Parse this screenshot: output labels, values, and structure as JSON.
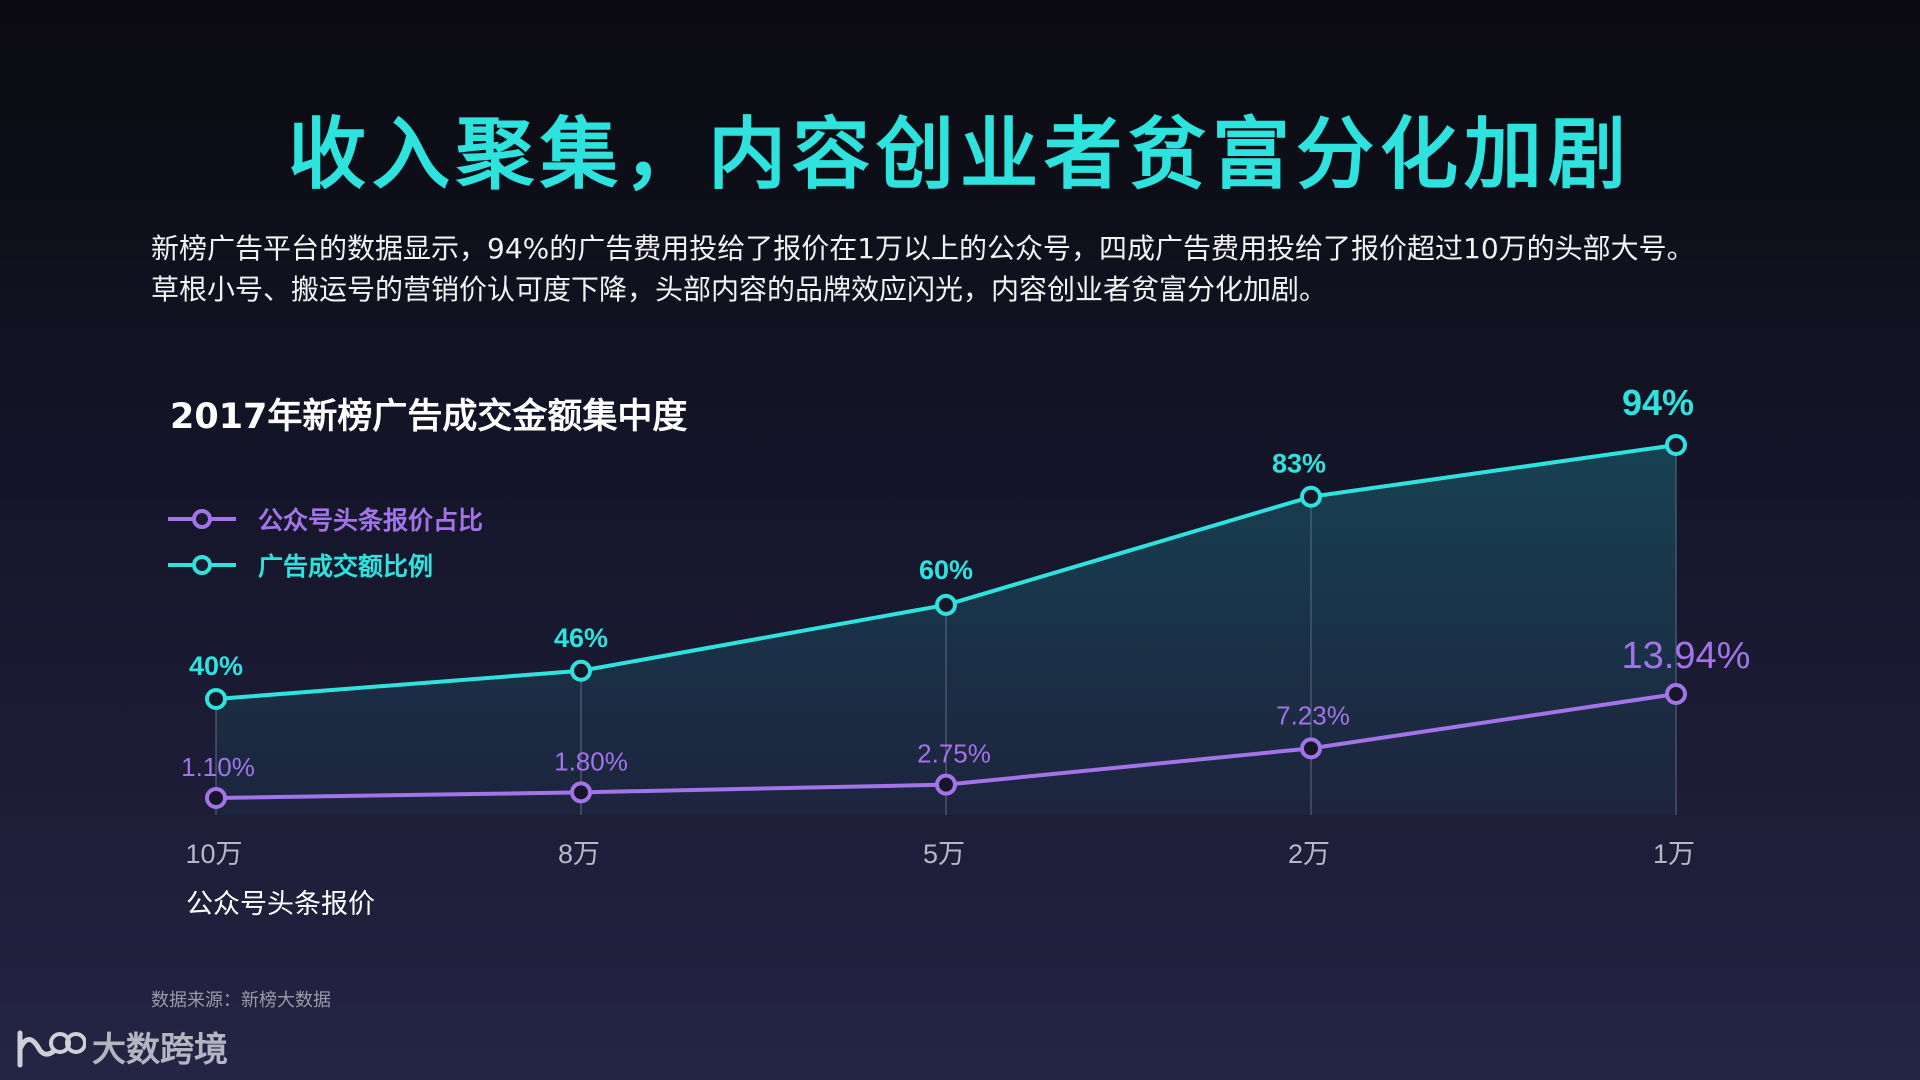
{
  "title": "收入聚集，内容创业者贫富分化加剧",
  "description": {
    "line1": "新榜广告平台的数据显示，94%的广告费用投给了报价在1万以上的公众号，四成广告费用投给了报价超过10万的头部大号。",
    "line2": "草根小号、搬运号的营销价认可度下降，头部内容的品牌效应闪光，内容创业者贫富分化加剧。"
  },
  "source": "数据来源：新榜大数据",
  "logo_text": "大数跨境",
  "chart_data": {
    "type": "line",
    "title": "2017年新榜广告成交金额集中度",
    "xlabel": "公众号头条报价",
    "ylabel": "",
    "categories": [
      "10万",
      "8万",
      "5万",
      "2万",
      "1万"
    ],
    "series": [
      {
        "name": "广告成交额比例",
        "color": "#2ee3dd",
        "values": [
          40,
          46,
          60,
          83,
          94
        ],
        "labels": [
          "40%",
          "46%",
          "60%",
          "83%",
          "94%"
        ]
      },
      {
        "name": "公众号头条报价占比",
        "color": "#a274e8",
        "values": [
          1.1,
          1.8,
          2.75,
          7.23,
          13.94
        ],
        "labels": [
          "1.10%",
          "1.80%",
          "2.75%",
          "7.23%",
          "13.94%"
        ]
      }
    ],
    "legend_position": "top-left",
    "grid": false
  }
}
